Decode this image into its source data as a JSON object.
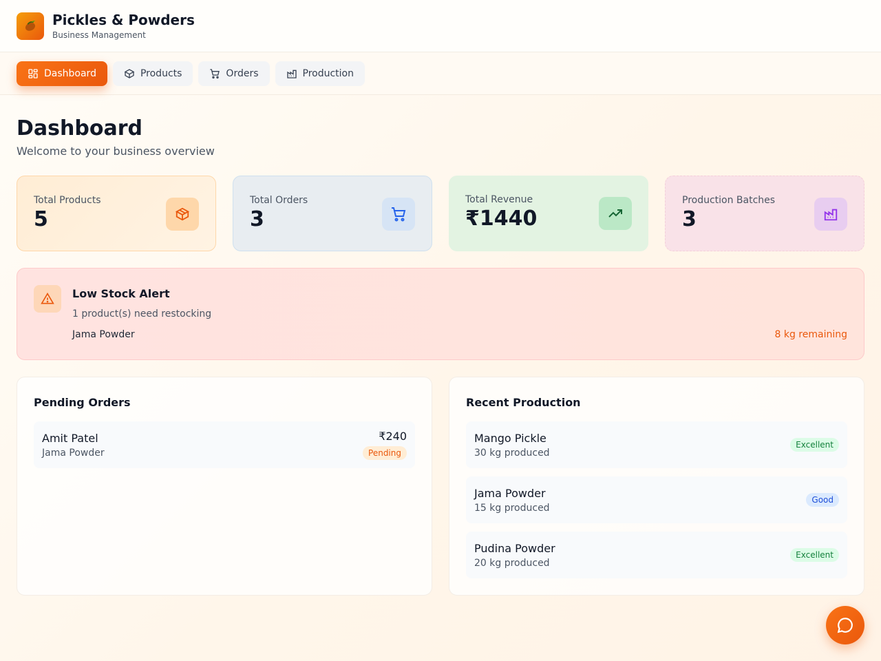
{
  "header": {
    "title": "Pickles & Powders",
    "subtitle": "Business Management",
    "logo_icon": "mango-icon"
  },
  "nav": {
    "tabs": [
      {
        "label": "Dashboard",
        "icon": "grid-icon",
        "active": true
      },
      {
        "label": "Products",
        "icon": "box-icon",
        "active": false
      },
      {
        "label": "Orders",
        "icon": "cart-icon",
        "active": false
      },
      {
        "label": "Production",
        "icon": "factory-icon",
        "active": false
      }
    ]
  },
  "page": {
    "title": "Dashboard",
    "subtitle": "Welcome to your business overview"
  },
  "stats": [
    {
      "label": "Total Products",
      "value": "5",
      "icon": "box-icon",
      "color": "#ea580c"
    },
    {
      "label": "Total Orders",
      "value": "3",
      "icon": "cart-icon",
      "color": "#2563eb"
    },
    {
      "label": "Total Revenue",
      "value": "₹1440",
      "icon": "trending-up-icon",
      "color": "#166534"
    },
    {
      "label": "Production Batches",
      "value": "3",
      "icon": "factory-icon",
      "color": "#9333ea"
    }
  ],
  "alert": {
    "title": "Low Stock Alert",
    "subtitle": "1 product(s) need restocking",
    "items": [
      {
        "product": "Jama Powder",
        "remaining": "8 kg remaining"
      }
    ],
    "icon": "warning-icon"
  },
  "pending_orders": {
    "title": "Pending Orders",
    "items": [
      {
        "customer": "Amit Patel",
        "product": "Jama Powder",
        "amount": "₹240",
        "status": "Pending"
      }
    ]
  },
  "recent_production": {
    "title": "Recent Production",
    "items": [
      {
        "product": "Mango Pickle",
        "quantity": "30 kg produced",
        "quality": "Excellent"
      },
      {
        "product": "Jama Powder",
        "quantity": "15 kg produced",
        "quality": "Good"
      },
      {
        "product": "Pudina Powder",
        "quantity": "20 kg produced",
        "quality": "Excellent"
      }
    ]
  },
  "chat_button": {
    "icon": "chat-bubble-icon"
  },
  "colors": {
    "accent": "#f97316",
    "accent_dark": "#ea580c",
    "alert_bg": "#ffe3e0"
  }
}
